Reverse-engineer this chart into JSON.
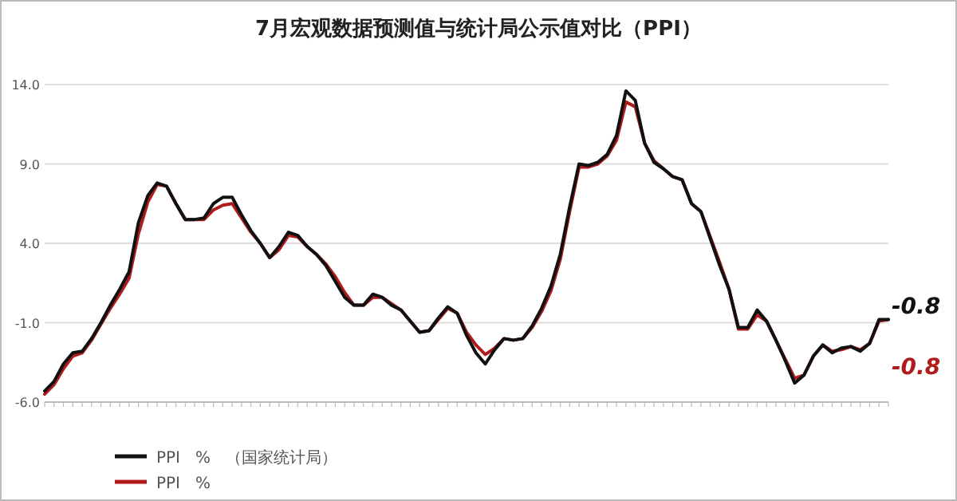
{
  "chart_data": {
    "type": "line",
    "title": "7月宏观数据预测值与统计局公示值对比（PPI）",
    "categories": [
      null,
      null,
      null,
      null,
      null,
      null,
      null,
      null,
      null,
      null,
      null,
      null,
      null,
      null,
      null,
      null,
      null,
      null,
      null,
      null,
      null,
      null,
      null,
      null,
      null,
      null,
      null,
      null,
      null,
      null,
      null,
      null,
      null,
      null,
      null,
      null,
      null,
      null,
      null,
      null,
      null,
      null,
      null,
      null,
      null,
      null,
      null,
      null,
      null,
      null,
      null,
      null,
      null,
      null,
      null,
      null,
      null,
      null,
      null,
      null,
      null,
      null,
      null,
      null,
      null,
      null,
      null,
      null,
      null,
      null,
      null,
      null,
      null,
      null,
      null,
      null,
      null,
      null,
      null,
      null,
      null,
      null,
      null,
      null,
      null,
      null,
      null,
      null,
      null,
      null,
      null
    ],
    "series": [
      {
        "name": "PPI   %   （国家统计局）",
        "color": "#111111",
        "values": [
          -5.3,
          -4.7,
          -3.6,
          -2.9,
          -2.8,
          -2.0,
          -1.0,
          0.1,
          1.1,
          2.2,
          5.3,
          7.0,
          7.8,
          7.6,
          6.5,
          5.5,
          5.5,
          5.6,
          6.5,
          6.9,
          6.9,
          5.8,
          4.8,
          4.0,
          3.1,
          3.8,
          4.7,
          4.5,
          3.8,
          3.3,
          2.6,
          1.6,
          0.6,
          0.1,
          0.1,
          0.8,
          0.6,
          0.1,
          -0.2,
          -0.9,
          -1.6,
          -1.5,
          -0.7,
          0.0,
          -0.4,
          -1.8,
          -2.9,
          -3.6,
          -2.7,
          -2.0,
          -2.1,
          -2.0,
          -1.2,
          -0.1,
          1.3,
          3.3,
          6.3,
          9.0,
          8.9,
          9.1,
          9.6,
          10.8,
          13.6,
          13.0,
          10.3,
          9.1,
          8.7,
          8.2,
          8.0,
          6.5,
          6.0,
          4.3,
          2.6,
          1.1,
          -1.3,
          -1.3,
          -0.2,
          -0.9,
          -2.1,
          -3.4,
          -4.8,
          -4.3,
          -3.1,
          -2.4,
          -2.9,
          -2.6,
          -2.5,
          -2.8,
          -2.3,
          -0.8,
          -0.8
        ],
        "value_labels": [
          null,
          null,
          null,
          null,
          null,
          null,
          null,
          null,
          null,
          null,
          null,
          null,
          null,
          null,
          null,
          null,
          null,
          null,
          null,
          null,
          null,
          null,
          null,
          null,
          null,
          null,
          null,
          null,
          null,
          null,
          null,
          null,
          null,
          null,
          null,
          null,
          null,
          null,
          null,
          null,
          null,
          null,
          null,
          null,
          null,
          null,
          null,
          null,
          null,
          null,
          null,
          null,
          null,
          null,
          null,
          null,
          null,
          null,
          null,
          null,
          null,
          null,
          null,
          null,
          null,
          null,
          null,
          null,
          null,
          null,
          null,
          null,
          null,
          null,
          null,
          null,
          null,
          null,
          null,
          null,
          null,
          null,
          null,
          null,
          null,
          null,
          null,
          null,
          null,
          null,
          "-0.8"
        ]
      },
      {
        "name": "PPI   %",
        "color": "#b01c1c",
        "values": [
          -5.5,
          -4.9,
          -3.9,
          -3.1,
          -2.9,
          -2.1,
          -1.1,
          -0.1,
          0.8,
          1.8,
          4.6,
          6.6,
          7.7,
          7.6,
          6.5,
          5.5,
          5.5,
          5.5,
          6.1,
          6.4,
          6.5,
          5.6,
          4.7,
          4.0,
          3.1,
          3.6,
          4.5,
          4.4,
          3.8,
          3.3,
          2.7,
          1.9,
          0.9,
          0.1,
          0.1,
          0.6,
          0.6,
          0.2,
          -0.2,
          -0.9,
          -1.6,
          -1.5,
          -0.8,
          -0.1,
          -0.4,
          -1.6,
          -2.4,
          -3.0,
          -2.6,
          -2.0,
          -2.1,
          -2.0,
          -1.3,
          -0.3,
          1.0,
          3.0,
          6.0,
          8.8,
          8.8,
          9.0,
          9.5,
          10.5,
          12.9,
          12.6,
          10.3,
          9.2,
          8.7,
          8.2,
          8.0,
          6.5,
          6.0,
          4.4,
          2.8,
          1.1,
          -1.4,
          -1.4,
          -0.5,
          -0.9,
          -2.1,
          -3.3,
          -4.5,
          -4.3,
          -3.1,
          -2.4,
          -2.8,
          -2.7,
          -2.5,
          -2.7,
          -2.3,
          -0.9,
          -0.8
        ],
        "value_labels": [
          null,
          null,
          null,
          null,
          null,
          null,
          null,
          null,
          null,
          null,
          null,
          null,
          null,
          null,
          null,
          null,
          null,
          null,
          null,
          null,
          null,
          null,
          null,
          null,
          null,
          null,
          null,
          null,
          null,
          null,
          null,
          null,
          null,
          null,
          null,
          null,
          null,
          null,
          null,
          null,
          null,
          null,
          null,
          null,
          null,
          null,
          null,
          null,
          null,
          null,
          null,
          null,
          null,
          null,
          null,
          null,
          null,
          null,
          null,
          null,
          null,
          null,
          null,
          null,
          null,
          null,
          null,
          null,
          null,
          null,
          null,
          null,
          null,
          null,
          null,
          null,
          null,
          null,
          null,
          null,
          null,
          null,
          null,
          null,
          null,
          null,
          null,
          null,
          null,
          null,
          "-0.8"
        ]
      }
    ],
    "ylim": [
      -6,
      14
    ],
    "yticks": [
      {
        "value": -6,
        "label": "-6.0"
      },
      {
        "value": -1,
        "label": "-1.0"
      },
      {
        "value": 4,
        "label": "4.0"
      },
      {
        "value": 9,
        "label": "9.0"
      },
      {
        "value": 14,
        "label": "14.0"
      }
    ],
    "grid": "y",
    "legend": "bottom",
    "marker": "none",
    "line_style": "solid"
  }
}
